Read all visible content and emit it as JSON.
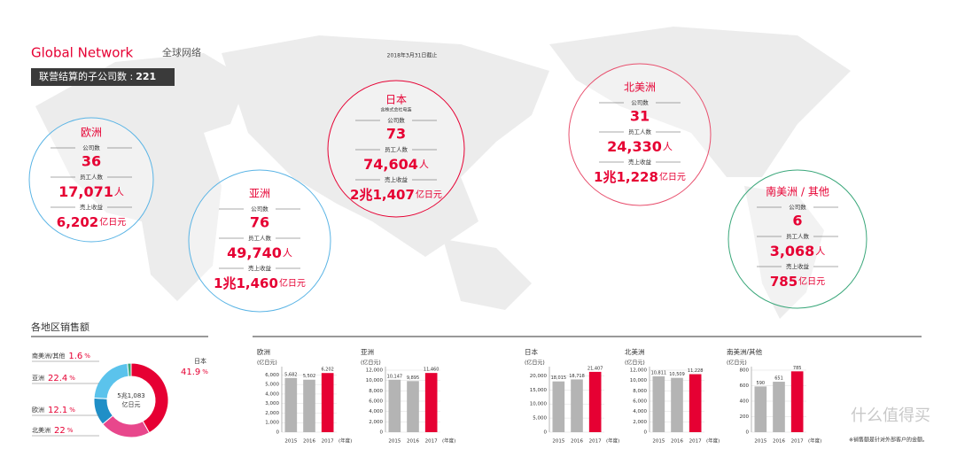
{
  "header": {
    "title": "Global Network",
    "subtitle": "全球网络",
    "date_note": "2018年3月31日截止",
    "banner_label": "联营结算的子公司数 :",
    "banner_value": 221
  },
  "labels": {
    "companies": "公司数",
    "employees": "员工人数",
    "revenue": "売上收益"
  },
  "regions": [
    {
      "name": "欧洲",
      "color": "#5ab4e5",
      "companies": 36,
      "employees": "17,071",
      "employees_unit": "人",
      "revenue": "6,202",
      "revenue_unit": "亿日元"
    },
    {
      "name": "亚洲",
      "color": "#5ab4e5",
      "companies": 76,
      "employees": "49,740",
      "employees_unit": "人",
      "revenue": "1兆1,460",
      "revenue_unit": "亿日元"
    },
    {
      "name": "日本",
      "note": "含株式会社电装",
      "color": "#e60033",
      "companies": 73,
      "employees": "74,604",
      "employees_unit": "人",
      "revenue": "2兆1,407",
      "revenue_unit": "亿日元"
    },
    {
      "name": "北美洲",
      "color": "#e8506e",
      "companies": 31,
      "employees": "24,330",
      "employees_unit": "人",
      "revenue": "1兆1,228",
      "revenue_unit": "亿日元"
    },
    {
      "name": "南美洲 / 其他",
      "color": "#3aa77a",
      "companies": 6,
      "employees": "3,068",
      "employees_unit": "人",
      "revenue": "785",
      "revenue_unit": "亿日元"
    }
  ],
  "chart_data": [
    {
      "type": "donut",
      "title": "各地区销售额",
      "center_label": [
        "5兆1,083",
        "亿日元"
      ],
      "categories": [
        "日本",
        "北美洲",
        "欧洲",
        "亚洲",
        "南美洲/其他"
      ],
      "values": [
        41.9,
        22.0,
        12.1,
        22.4,
        1.6
      ],
      "colors": [
        "#e60033",
        "#e8478c",
        "#1f8fc7",
        "#5bc3ec",
        "#3aa77a"
      ],
      "unit": "%"
    },
    {
      "type": "bar",
      "title": "欧洲",
      "y_label": "(亿日元)",
      "x_label": "(年度)",
      "categories": [
        "2015",
        "2016",
        "2017"
      ],
      "values": [
        5682,
        5502,
        6202
      ],
      "value_labels": [
        "5,682",
        "5,502",
        "6,202"
      ],
      "colors": [
        "#b4b4b4",
        "#b4b4b4",
        "#e60033"
      ],
      "ylim": [
        0,
        6500
      ],
      "yticks": [
        0,
        {
          "value": 1000,
          "label": "1,000"
        },
        {
          "value": 2000,
          "label": "2,000"
        },
        {
          "value": 3000,
          "label": "3,000"
        },
        {
          "value": 4000,
          "label": "4,000"
        },
        {
          "value": 5000,
          "label": "5,000"
        },
        {
          "value": 6000,
          "label": "6,000"
        }
      ]
    },
    {
      "type": "bar",
      "title": "亚洲",
      "y_label": "(亿日元)",
      "x_label": "(年度)",
      "categories": [
        "2015",
        "2016",
        "2017"
      ],
      "values": [
        10147,
        9895,
        11460
      ],
      "value_labels": [
        "10,147",
        "9,895",
        "11,460"
      ],
      "colors": [
        "#b4b4b4",
        "#b4b4b4",
        "#e60033"
      ],
      "ylim": [
        0,
        12000
      ],
      "yticks": [
        0,
        {
          "value": 2000,
          "label": "2,000"
        },
        {
          "value": 4000,
          "label": "4,000"
        },
        {
          "value": 6000,
          "label": "6,000"
        },
        {
          "value": 8000,
          "label": "8,000"
        },
        {
          "value": 10000,
          "label": "10,000"
        },
        {
          "value": 12000,
          "label": "12,000"
        }
      ]
    },
    {
      "type": "bar",
      "title": "日本",
      "y_label": "(亿日元)",
      "x_label": "(年度)",
      "categories": [
        "2015",
        "2016",
        "2017"
      ],
      "values": [
        18015,
        18718,
        21407
      ],
      "value_labels": [
        "18,015",
        "18,718",
        "21,407"
      ],
      "colors": [
        "#b4b4b4",
        "#b4b4b4",
        "#e60033"
      ],
      "ylim": [
        0,
        22000
      ],
      "yticks": [
        0,
        {
          "value": 5000,
          "label": "5,000"
        },
        {
          "value": 10000,
          "label": "10,000"
        },
        {
          "value": 15000,
          "label": "15,000"
        },
        {
          "value": 20000,
          "label": "20,000"
        }
      ]
    },
    {
      "type": "bar",
      "title": "北美洲",
      "y_label": "(亿日元)",
      "x_label": "(年度)",
      "categories": [
        "2015",
        "2016",
        "2017"
      ],
      "values": [
        10811,
        10509,
        11228
      ],
      "value_labels": [
        "10,811",
        "10,509",
        "11,228"
      ],
      "colors": [
        "#b4b4b4",
        "#b4b4b4",
        "#e60033"
      ],
      "ylim": [
        0,
        12000
      ],
      "yticks": [
        0,
        {
          "value": 2000,
          "label": "2,000"
        },
        {
          "value": 4000,
          "label": "4,000"
        },
        {
          "value": 6000,
          "label": "6,000"
        },
        {
          "value": 8000,
          "label": "8,000"
        },
        {
          "value": 10000,
          "label": "10,000"
        },
        {
          "value": 12000,
          "label": "12,000"
        }
      ]
    },
    {
      "type": "bar",
      "title": "南美洲/其他",
      "y_label": "(亿日元)",
      "x_label": "(年度)",
      "categories": [
        "2015",
        "2016",
        "2017"
      ],
      "values": [
        590,
        651,
        785
      ],
      "colors": [
        "#b4b4b4",
        "#b4b4b4",
        "#e60033"
      ],
      "ylim": [
        0,
        800
      ],
      "yticks": [
        0,
        200,
        400,
        600,
        800
      ]
    }
  ],
  "footnote": "※销售额是针对外部客户的金额。",
  "watermark": "什么值得买"
}
